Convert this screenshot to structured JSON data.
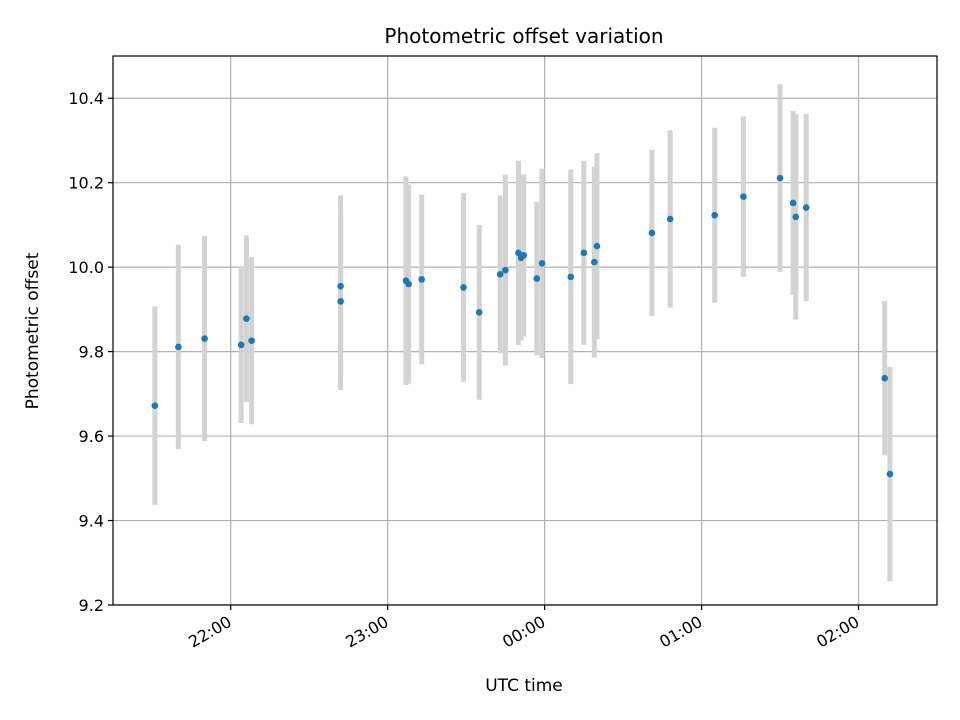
{
  "chart_data": {
    "type": "scatter",
    "title": "Photometric offset variation",
    "xlabel": "UTC time",
    "ylabel": "Photometric offset",
    "x_unit": "UTC time",
    "xlim": [
      "21:15",
      "02:30"
    ],
    "ylim": [
      9.2,
      10.5
    ],
    "x_ticks": [
      "22:00",
      "23:00",
      "00:00",
      "01:00",
      "02:00"
    ],
    "y_ticks": [
      9.2,
      9.4,
      9.6,
      9.8,
      10.0,
      10.2,
      10.4
    ],
    "grid": true,
    "legend": "none",
    "marker_color": "#1f77b4",
    "errorbar_color": "#d3d3d3",
    "points": [
      {
        "x": "21:31",
        "y": 9.672,
        "err": 0.235
      },
      {
        "x": "21:40",
        "y": 9.811,
        "err": 0.242
      },
      {
        "x": "21:50",
        "y": 9.831,
        "err": 0.243
      },
      {
        "x": "22:04",
        "y": 9.816,
        "err": 0.185
      },
      {
        "x": "22:06",
        "y": 9.878,
        "err": 0.197
      },
      {
        "x": "22:08",
        "y": 9.826,
        "err": 0.198
      },
      {
        "x": "22:42",
        "y": 9.919,
        "err": 0.21
      },
      {
        "x": "22:42",
        "y": 9.955,
        "err": 0.215
      },
      {
        "x": "23:07",
        "y": 9.968,
        "err": 0.247
      },
      {
        "x": "23:08",
        "y": 9.96,
        "err": 0.236
      },
      {
        "x": "23:13",
        "y": 9.971,
        "err": 0.201
      },
      {
        "x": "23:29",
        "y": 9.952,
        "err": 0.223
      },
      {
        "x": "23:35",
        "y": 9.893,
        "err": 0.207
      },
      {
        "x": "23:43",
        "y": 9.983,
        "err": 0.187
      },
      {
        "x": "23:45",
        "y": 9.993,
        "err": 0.226
      },
      {
        "x": "23:50",
        "y": 10.034,
        "err": 0.218
      },
      {
        "x": "23:51",
        "y": 10.022,
        "err": 0.196
      },
      {
        "x": "23:52",
        "y": 10.028,
        "err": 0.192
      },
      {
        "x": "23:57",
        "y": 9.973,
        "err": 0.182
      },
      {
        "x": "23:59",
        "y": 10.009,
        "err": 0.224
      },
      {
        "x": "00:10",
        "y": 9.977,
        "err": 0.254
      },
      {
        "x": "00:15",
        "y": 10.034,
        "err": 0.218
      },
      {
        "x": "00:19",
        "y": 10.012,
        "err": 0.226
      },
      {
        "x": "00:20",
        "y": 10.05,
        "err": 0.22
      },
      {
        "x": "00:41",
        "y": 10.081,
        "err": 0.197
      },
      {
        "x": "00:48",
        "y": 10.114,
        "err": 0.21
      },
      {
        "x": "01:05",
        "y": 10.123,
        "err": 0.207
      },
      {
        "x": "01:16",
        "y": 10.167,
        "err": 0.19
      },
      {
        "x": "01:30",
        "y": 10.211,
        "err": 0.222
      },
      {
        "x": "01:35",
        "y": 10.152,
        "err": 0.218
      },
      {
        "x": "01:36",
        "y": 10.119,
        "err": 0.243
      },
      {
        "x": "01:40",
        "y": 10.141,
        "err": 0.222
      },
      {
        "x": "02:10",
        "y": 9.737,
        "err": 0.183
      },
      {
        "x": "02:12",
        "y": 9.51,
        "err": 0.254
      }
    ]
  }
}
